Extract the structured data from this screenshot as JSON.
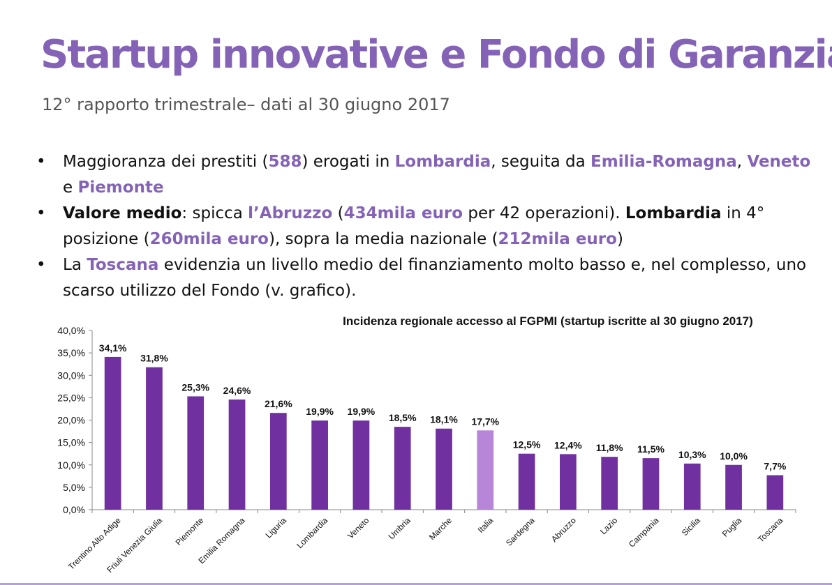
{
  "slide": {
    "title": "Startup innovative e Fondo di Garanzia",
    "subtitle": "12° rapporto trimestrale– dati al 30 giugno 2017",
    "bullet_glyph": "•",
    "bullets": [
      {
        "parts": [
          {
            "text": "Maggioranza dei prestiti (",
            "style": "normal"
          },
          {
            "text": "588",
            "style": "hl"
          },
          {
            "text": ") erogati in ",
            "style": "normal"
          },
          {
            "text": "Lombardia",
            "style": "hl"
          },
          {
            "text": ", seguita da ",
            "style": "normal"
          },
          {
            "text": "Emilia-Romagna",
            "style": "hl"
          },
          {
            "text": ", ",
            "style": "normal"
          },
          {
            "text": "Veneto",
            "style": "hl"
          },
          {
            "text": " e ",
            "style": "normal"
          },
          {
            "text": "Piemonte",
            "style": "hl"
          }
        ]
      },
      {
        "parts": [
          {
            "text": "Valore medio",
            "style": "b"
          },
          {
            "text": ": spicca ",
            "style": "normal"
          },
          {
            "text": "l’Abruzzo",
            "style": "hl"
          },
          {
            "text": " (",
            "style": "normal"
          },
          {
            "text": "434mila euro",
            "style": "hl"
          },
          {
            "text": " per 42 operazioni). ",
            "style": "normal"
          },
          {
            "text": "Lombardia",
            "style": "b"
          },
          {
            "text": " in 4° posizione (",
            "style": "normal"
          },
          {
            "text": "260mila euro",
            "style": "hl"
          },
          {
            "text": "), sopra la media nazionale (",
            "style": "normal"
          },
          {
            "text": "212mila euro",
            "style": "hl"
          },
          {
            "text": ")",
            "style": "normal"
          }
        ]
      },
      {
        "parts": [
          {
            "text": "La ",
            "style": "normal"
          },
          {
            "text": "Toscana",
            "style": "hl"
          },
          {
            "text": " evidenzia un livello medio del finanziamento molto basso e, nel complesso, uno scarso utilizzo del Fondo (v. grafico).",
            "style": "normal"
          }
        ]
      }
    ]
  },
  "colors": {
    "accent": "#8463b6",
    "bar": "#7030a0",
    "bar_highlight": "#b886d8",
    "axis": "#888888"
  },
  "chart_data": {
    "type": "bar",
    "title": "Incidenza regionale accesso al FGPMI (startup iscritte al 30 giugno 2017)",
    "xlabel": "",
    "ylabel": "",
    "ylim": [
      0,
      40
    ],
    "ytick_values": [
      0,
      5,
      10,
      15,
      20,
      25,
      30,
      35,
      40
    ],
    "yticks": [
      "0,0%",
      "5,0%",
      "10,0%",
      "15,0%",
      "20,0%",
      "25,0%",
      "30,0%",
      "35,0%",
      "40,0%"
    ],
    "categories": [
      "Trentino Alto Adige",
      "Friuli Venezia Giulia",
      "Piemonte",
      "Emilia Romagna",
      "Liguria",
      "Lombardia",
      "Veneto",
      "Umbria",
      "Marche",
      "Italia",
      "Sardegna",
      "Abruzzo",
      "Lazio",
      "Campania",
      "Sicilia",
      "Puglia",
      "Toscana"
    ],
    "values": [
      34.1,
      31.8,
      25.3,
      24.6,
      21.6,
      19.9,
      19.9,
      18.5,
      18.1,
      17.7,
      12.5,
      12.4,
      11.8,
      11.5,
      10.3,
      10.0,
      7.7
    ],
    "labels": [
      "34,1%",
      "31,8%",
      "25,3%",
      "24,6%",
      "21,6%",
      "19,9%",
      "19,9%",
      "18,5%",
      "18,1%",
      "17,7%",
      "12,5%",
      "12,4%",
      "11,8%",
      "11,5%",
      "10,3%",
      "10,0%",
      "7,7%"
    ],
    "highlight_category": "Italia",
    "grid": false,
    "legend": "none"
  }
}
